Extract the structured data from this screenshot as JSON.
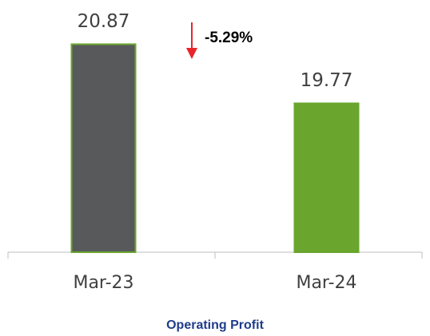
{
  "chart_data": {
    "type": "bar",
    "title": "Operating Profit",
    "categories": [
      "Mar-23",
      "Mar-24"
    ],
    "values": [
      20.87,
      19.77
    ],
    "colors": [
      "#58595b",
      "#6aa62e"
    ],
    "edgecolor": "#6aa62e",
    "ylim": [
      17,
      21.5
    ],
    "annotation": "-5.29%",
    "annotation_color": "#e8262a"
  }
}
